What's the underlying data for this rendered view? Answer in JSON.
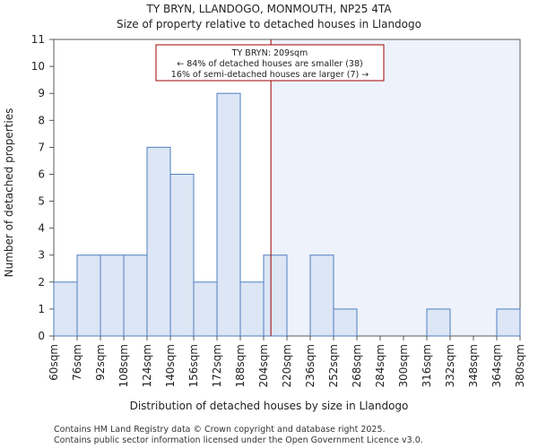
{
  "chart_data": {
    "type": "bar",
    "title_line1": "TY BRYN, LLANDOGO, MONMOUTH, NP25 4TA",
    "title_line2": "Size of property relative to detached houses in Llandogo",
    "xlabel": "Distribution of detached houses by size in Llandogo",
    "ylabel": "Number of detached properties",
    "bin_edges": [
      60,
      76,
      92,
      108,
      124,
      140,
      156,
      172,
      188,
      204,
      220,
      236,
      252,
      268,
      284,
      300,
      316,
      332,
      348,
      364,
      380
    ],
    "x_tick_labels": [
      "60sqm",
      "76sqm",
      "92sqm",
      "108sqm",
      "124sqm",
      "140sqm",
      "156sqm",
      "172sqm",
      "188sqm",
      "204sqm",
      "220sqm",
      "236sqm",
      "252sqm",
      "268sqm",
      "284sqm",
      "300sqm",
      "316sqm",
      "332sqm",
      "348sqm",
      "364sqm",
      "380sqm"
    ],
    "values": [
      2,
      3,
      3,
      3,
      7,
      6,
      2,
      9,
      2,
      3,
      0,
      3,
      1,
      0,
      0,
      0,
      1,
      0,
      0,
      1
    ],
    "ylim": [
      0,
      11
    ],
    "y_ticks": [
      0,
      1,
      2,
      3,
      4,
      5,
      6,
      7,
      8,
      9,
      10,
      11
    ],
    "grid": false,
    "property_marker": {
      "value_sqm": 209,
      "line1": "TY BRYN: 209sqm",
      "line2": "← 84% of detached houses are smaller (38)",
      "line3": "16% of semi-detached houses are larger (7) →"
    },
    "colors": {
      "bar_fill": "#dce6f5",
      "bar_edge": "#4f7fc0",
      "marker": "#a00000",
      "right_shade": "#eef2fb",
      "axis": "#333333"
    }
  },
  "footer": {
    "line1": "Contains HM Land Registry data © Crown copyright and database right 2025.",
    "line2": "Contains public sector information licensed under the Open Government Licence v3.0."
  }
}
